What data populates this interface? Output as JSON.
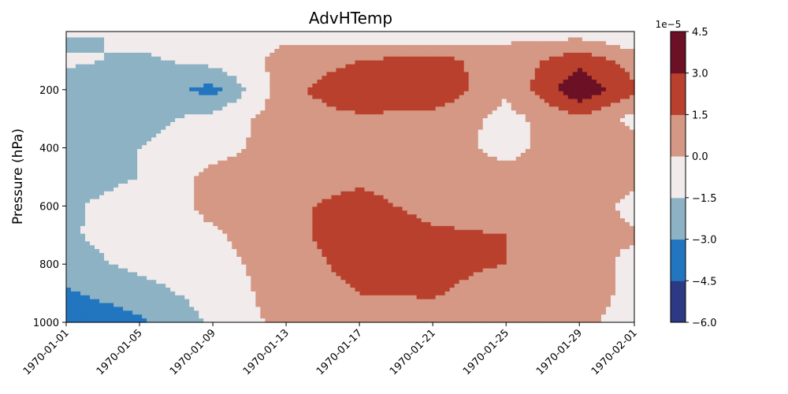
{
  "chart_data": {
    "type": "heatmap",
    "title": "AdvHTemp",
    "ylabel": "Pressure (hPa)",
    "xlabel": "",
    "x_ticks": [
      "1970-01-01",
      "1970-01-05",
      "1970-01-09",
      "1970-01-13",
      "1970-01-17",
      "1970-01-21",
      "1970-01-25",
      "1970-01-29",
      "1970-02-01"
    ],
    "xlim": [
      "1970-01-01",
      "1970-02-01"
    ],
    "y_ticks": [
      200,
      400,
      600,
      800,
      1000
    ],
    "ylim": [
      1000,
      0
    ],
    "y_inverted": true,
    "colorbar": {
      "exponent_label": "1e−5",
      "levels": [
        -6.0,
        -4.5,
        -3.0,
        -1.5,
        0.0,
        1.5,
        3.0,
        4.5
      ],
      "tick_labels": [
        "−6.0",
        "−4.5",
        "−3.0",
        "−1.5",
        "0.0",
        "1.5",
        "3.0",
        "4.5"
      ],
      "colors": [
        "#2b3a82",
        "#2275bf",
        "#8cb2c4",
        "#f2ebeb",
        "#d49885",
        "#b8402c",
        "#6b1025"
      ]
    },
    "grid": false,
    "time_days": [
      1,
      5,
      9,
      13,
      17,
      21,
      25,
      29,
      32
    ],
    "pressure_hpa": [
      20,
      100,
      200,
      300,
      400,
      500,
      600,
      700,
      800,
      900,
      1000
    ],
    "values": [
      [
        -2.0,
        -1.0,
        -1.0,
        -0.2,
        -1.0,
        -1.0,
        -0.2,
        -0.2,
        -1.0
      ],
      [
        -1.2,
        -1.8,
        -1.0,
        0.5,
        1.5,
        2.2,
        0.5,
        2.5,
        0.8
      ],
      [
        -2.5,
        -2.0,
        -3.5,
        1.0,
        2.8,
        2.8,
        0.2,
        4.2,
        1.8
      ],
      [
        -2.2,
        -2.0,
        -1.0,
        0.8,
        1.2,
        1.0,
        -0.5,
        1.2,
        -0.5
      ],
      [
        -1.8,
        -1.5,
        -0.6,
        0.8,
        1.0,
        0.8,
        -0.5,
        1.0,
        0.6
      ],
      [
        -1.8,
        -1.5,
        0.5,
        0.8,
        1.2,
        0.9,
        0.5,
        1.0,
        0.5
      ],
      [
        -1.6,
        -1.2,
        0.4,
        1.2,
        2.0,
        1.0,
        0.5,
        0.9,
        -0.5
      ],
      [
        -1.7,
        -0.8,
        -0.2,
        1.0,
        2.5,
        1.8,
        1.5,
        0.5,
        0.2
      ],
      [
        -2.0,
        -1.2,
        -0.6,
        0.8,
        2.0,
        1.8,
        1.5,
        0.8,
        -0.5
      ],
      [
        -3.2,
        -2.0,
        -1.0,
        0.8,
        1.5,
        1.6,
        1.0,
        1.0,
        -0.6
      ],
      [
        -4.6,
        -3.3,
        -1.2,
        0.5,
        1.0,
        1.0,
        0.7,
        0.3,
        -0.6
      ]
    ]
  }
}
